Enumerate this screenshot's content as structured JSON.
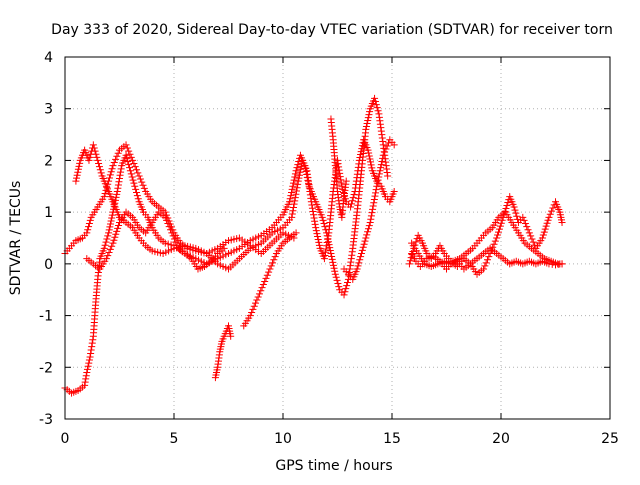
{
  "chart_data": {
    "type": "scatter",
    "title": "Day 333 of 2020, Sidereal Day-to-day VTEC variation (SDTVAR) for receiver torn",
    "xlabel": "GPS time / hours",
    "ylabel": "SDTVAR / TECUs",
    "xlim": [
      0,
      25
    ],
    "ylim": [
      -3,
      4
    ],
    "xticks": [
      "0",
      "5",
      "10",
      "15",
      "20",
      "25"
    ],
    "yticks": [
      "-3",
      "-2",
      "-1",
      "0",
      "1",
      "2",
      "3",
      "4"
    ],
    "xtick_values": [
      0,
      5,
      10,
      15,
      20,
      25
    ],
    "ytick_values": [
      -3,
      -2,
      -1,
      0,
      1,
      2,
      3,
      4
    ],
    "grid": true,
    "marker": "plus",
    "series": [
      {
        "name": "SDTVAR",
        "color": "#ff0000",
        "tracks": [
          [
            [
              0.0,
              -2.4
            ],
            [
              0.3,
              -2.5
            ],
            [
              0.6,
              -2.45
            ],
            [
              0.9,
              -2.35
            ],
            [
              1.0,
              -2.1
            ],
            [
              1.15,
              -1.8
            ],
            [
              1.3,
              -1.4
            ],
            [
              1.4,
              -0.8
            ],
            [
              1.5,
              -0.3
            ],
            [
              1.6,
              0.1
            ],
            [
              1.8,
              0.3
            ],
            [
              2.0,
              0.6
            ],
            [
              2.2,
              1.0
            ],
            [
              2.4,
              1.4
            ],
            [
              2.6,
              1.9
            ],
            [
              2.8,
              2.1
            ],
            [
              3.0,
              1.8
            ],
            [
              3.2,
              1.5
            ],
            [
              3.4,
              1.2
            ],
            [
              3.6,
              1.0
            ],
            [
              3.8,
              0.9
            ],
            [
              4.0,
              0.7
            ],
            [
              4.3,
              0.5
            ],
            [
              4.6,
              0.4
            ],
            [
              5.0,
              0.35
            ],
            [
              5.5,
              0.2
            ],
            [
              6.0,
              0.1
            ],
            [
              6.5,
              0.0
            ],
            [
              7.0,
              0.1
            ],
            [
              7.5,
              0.2
            ],
            [
              8.0,
              0.3
            ],
            [
              8.5,
              0.45
            ],
            [
              9.0,
              0.55
            ],
            [
              9.5,
              0.7
            ],
            [
              10.0,
              0.95
            ],
            [
              10.3,
              1.2
            ],
            [
              10.6,
              1.8
            ],
            [
              10.8,
              2.1
            ],
            [
              11.0,
              1.9
            ],
            [
              11.2,
              1.5
            ],
            [
              11.4,
              1.3
            ],
            [
              11.6,
              1.1
            ],
            [
              11.8,
              0.9
            ],
            [
              12.0,
              0.6
            ],
            [
              12.2,
              0.2
            ],
            [
              12.4,
              -0.2
            ],
            [
              12.6,
              -0.5
            ],
            [
              12.8,
              -0.6
            ],
            [
              13.0,
              -0.3
            ],
            [
              13.2,
              0.3
            ],
            [
              13.4,
              1.0
            ],
            [
              13.6,
              1.8
            ],
            [
              13.8,
              2.6
            ],
            [
              14.0,
              3.0
            ],
            [
              14.2,
              3.2
            ],
            [
              14.4,
              2.9
            ],
            [
              14.6,
              2.3
            ],
            [
              14.8,
              1.7
            ]
          ],
          [
            [
              0.0,
              0.2
            ],
            [
              0.2,
              0.3
            ],
            [
              0.5,
              0.45
            ],
            [
              0.8,
              0.5
            ],
            [
              1.0,
              0.6
            ],
            [
              1.2,
              0.9
            ],
            [
              1.5,
              1.1
            ],
            [
              1.8,
              1.3
            ],
            [
              2.0,
              1.6
            ],
            [
              2.2,
              1.9
            ],
            [
              2.5,
              2.2
            ],
            [
              2.8,
              2.3
            ],
            [
              3.1,
              2.0
            ],
            [
              3.4,
              1.7
            ],
            [
              3.7,
              1.4
            ],
            [
              4.0,
              1.2
            ],
            [
              4.3,
              1.1
            ],
            [
              4.6,
              1.0
            ],
            [
              5.0,
              0.6
            ],
            [
              5.3,
              0.4
            ],
            [
              5.6,
              0.3
            ],
            [
              6.0,
              0.25
            ],
            [
              6.5,
              0.2
            ],
            [
              7.0,
              0.0
            ],
            [
              7.5,
              -0.1
            ],
            [
              8.0,
              0.1
            ],
            [
              8.5,
              0.3
            ],
            [
              9.0,
              0.4
            ],
            [
              9.5,
              0.6
            ],
            [
              10.0,
              0.7
            ],
            [
              10.4,
              0.9
            ],
            [
              10.7,
              1.6
            ],
            [
              10.9,
              2.0
            ],
            [
              11.1,
              1.8
            ],
            [
              11.3,
              1.2
            ],
            [
              11.5,
              0.7
            ],
            [
              11.7,
              0.3
            ],
            [
              11.9,
              0.1
            ],
            [
              12.1,
              0.6
            ],
            [
              12.3,
              1.4
            ],
            [
              12.5,
              2.0
            ],
            [
              12.7,
              1.5
            ],
            [
              12.9,
              1.2
            ],
            [
              13.1,
              1.1
            ],
            [
              13.3,
              1.4
            ],
            [
              13.5,
              2.0
            ],
            [
              13.7,
              2.4
            ],
            [
              13.9,
              2.2
            ],
            [
              14.1,
              1.8
            ],
            [
              14.3,
              1.6
            ],
            [
              14.5,
              1.5
            ],
            [
              14.7,
              1.3
            ],
            [
              14.9,
              1.2
            ],
            [
              15.1,
              1.4
            ]
          ],
          [
            [
              0.5,
              1.6
            ],
            [
              0.7,
              2.0
            ],
            [
              0.9,
              2.2
            ],
            [
              1.1,
              2.0
            ],
            [
              1.3,
              2.3
            ],
            [
              1.5,
              2.0
            ],
            [
              1.7,
              1.7
            ],
            [
              1.9,
              1.5
            ],
            [
              2.1,
              1.3
            ],
            [
              2.3,
              1.1
            ],
            [
              2.5,
              0.9
            ],
            [
              2.8,
              0.8
            ],
            [
              3.1,
              0.7
            ],
            [
              3.4,
              0.5
            ],
            [
              3.7,
              0.35
            ],
            [
              4.0,
              0.25
            ],
            [
              4.5,
              0.2
            ],
            [
              5.0,
              0.3
            ],
            [
              5.5,
              0.35
            ],
            [
              6.0,
              0.3
            ],
            [
              6.5,
              0.2
            ],
            [
              7.0,
              0.3
            ],
            [
              7.5,
              0.45
            ],
            [
              8.0,
              0.5
            ],
            [
              8.5,
              0.35
            ],
            [
              9.0,
              0.2
            ],
            [
              9.5,
              0.4
            ],
            [
              10.0,
              0.6
            ],
            [
              10.5,
              0.5
            ]
          ],
          [
            [
              1.0,
              0.1
            ],
            [
              1.3,
              0.0
            ],
            [
              1.6,
              -0.1
            ],
            [
              1.9,
              0.1
            ],
            [
              2.2,
              0.4
            ],
            [
              2.5,
              0.8
            ],
            [
              2.8,
              1.0
            ],
            [
              3.1,
              0.9
            ],
            [
              3.4,
              0.7
            ],
            [
              3.7,
              0.6
            ],
            [
              4.0,
              0.8
            ],
            [
              4.3,
              1.0
            ],
            [
              4.6,
              0.9
            ],
            [
              4.9,
              0.6
            ],
            [
              5.2,
              0.3
            ],
            [
              5.5,
              0.2
            ],
            [
              5.8,
              0.1
            ],
            [
              6.1,
              -0.1
            ],
            [
              6.4,
              -0.05
            ],
            [
              6.7,
              0.05
            ],
            [
              7.0,
              0.2
            ],
            [
              7.3,
              0.3
            ]
          ],
          [
            [
              6.9,
              -2.2
            ],
            [
              7.0,
              -2.0
            ],
            [
              7.1,
              -1.7
            ],
            [
              7.2,
              -1.5
            ],
            [
              7.3,
              -1.4
            ],
            [
              7.4,
              -1.3
            ],
            [
              7.5,
              -1.2
            ],
            [
              7.6,
              -1.4
            ]
          ],
          [
            [
              8.2,
              -1.2
            ],
            [
              8.5,
              -1.0
            ],
            [
              8.8,
              -0.7
            ],
            [
              9.1,
              -0.4
            ],
            [
              9.4,
              -0.1
            ],
            [
              9.7,
              0.2
            ],
            [
              10.0,
              0.4
            ],
            [
              10.3,
              0.5
            ],
            [
              10.6,
              0.6
            ]
          ],
          [
            [
              12.2,
              2.8
            ],
            [
              12.3,
              2.4
            ],
            [
              12.4,
              1.9
            ],
            [
              12.5,
              1.4
            ],
            [
              12.6,
              1.1
            ],
            [
              12.7,
              0.9
            ],
            [
              12.8,
              1.3
            ],
            [
              12.9,
              1.6
            ]
          ],
          [
            [
              12.8,
              -0.1
            ],
            [
              13.0,
              -0.2
            ],
            [
              13.2,
              -0.3
            ],
            [
              13.4,
              -0.1
            ],
            [
              13.6,
              0.2
            ],
            [
              13.8,
              0.5
            ],
            [
              14.0,
              0.8
            ],
            [
              14.3,
              1.5
            ],
            [
              14.6,
              2.1
            ],
            [
              14.9,
              2.4
            ],
            [
              15.1,
              2.3
            ]
          ],
          [
            [
              15.8,
              0.0
            ],
            [
              16.0,
              0.3
            ],
            [
              16.2,
              0.55
            ],
            [
              16.4,
              0.4
            ],
            [
              16.6,
              0.2
            ],
            [
              16.8,
              0.1
            ],
            [
              17.0,
              0.2
            ],
            [
              17.2,
              0.35
            ],
            [
              17.4,
              0.2
            ],
            [
              17.6,
              0.1
            ],
            [
              17.8,
              0.0
            ],
            [
              18.0,
              -0.05
            ],
            [
              18.3,
              0.1
            ],
            [
              18.6,
              0.0
            ],
            [
              18.9,
              -0.2
            ],
            [
              19.2,
              -0.1
            ],
            [
              19.5,
              0.2
            ],
            [
              19.8,
              0.5
            ],
            [
              20.1,
              0.9
            ],
            [
              20.4,
              1.3
            ],
            [
              20.6,
              1.1
            ],
            [
              20.8,
              0.8
            ],
            [
              21.0,
              0.9
            ],
            [
              21.3,
              0.6
            ],
            [
              21.6,
              0.3
            ],
            [
              21.9,
              0.5
            ],
            [
              22.2,
              0.9
            ],
            [
              22.5,
              1.2
            ],
            [
              22.7,
              1.0
            ],
            [
              22.8,
              0.8
            ]
          ],
          [
            [
              15.9,
              0.4
            ],
            [
              16.2,
              0.2
            ],
            [
              16.5,
              0.0
            ],
            [
              16.8,
              -0.05
            ],
            [
              17.1,
              0.0
            ],
            [
              17.4,
              0.05
            ],
            [
              17.7,
              0.0
            ],
            [
              18.0,
              0.05
            ],
            [
              18.3,
              -0.1
            ],
            [
              18.6,
              0.0
            ],
            [
              18.9,
              0.1
            ],
            [
              19.2,
              0.2
            ],
            [
              19.5,
              0.3
            ],
            [
              19.8,
              0.2
            ],
            [
              20.1,
              0.1
            ],
            [
              20.4,
              0.0
            ],
            [
              20.7,
              0.05
            ],
            [
              21.0,
              0.0
            ],
            [
              21.3,
              0.05
            ],
            [
              21.6,
              0.0
            ],
            [
              21.9,
              0.05
            ],
            [
              22.2,
              0.0
            ],
            [
              22.5,
              -0.02
            ],
            [
              22.8,
              0.0
            ]
          ],
          [
            [
              15.9,
              0.2
            ],
            [
              16.1,
              0.05
            ],
            [
              16.3,
              -0.05
            ],
            [
              16.6,
              0.1
            ],
            [
              16.9,
              0.15
            ],
            [
              17.2,
              0.05
            ],
            [
              17.5,
              -0.1
            ],
            [
              17.8,
              0.05
            ],
            [
              18.1,
              0.1
            ],
            [
              18.4,
              0.2
            ],
            [
              18.7,
              0.3
            ],
            [
              19.0,
              0.45
            ],
            [
              19.3,
              0.6
            ],
            [
              19.6,
              0.7
            ],
            [
              19.9,
              0.9
            ],
            [
              20.2,
              1.0
            ],
            [
              20.5,
              0.8
            ],
            [
              20.8,
              0.6
            ],
            [
              21.1,
              0.4
            ],
            [
              21.4,
              0.3
            ],
            [
              21.7,
              0.2
            ],
            [
              22.0,
              0.1
            ],
            [
              22.3,
              0.05
            ],
            [
              22.6,
              0.0
            ],
            [
              22.8,
              0.0
            ]
          ]
        ]
      }
    ]
  }
}
